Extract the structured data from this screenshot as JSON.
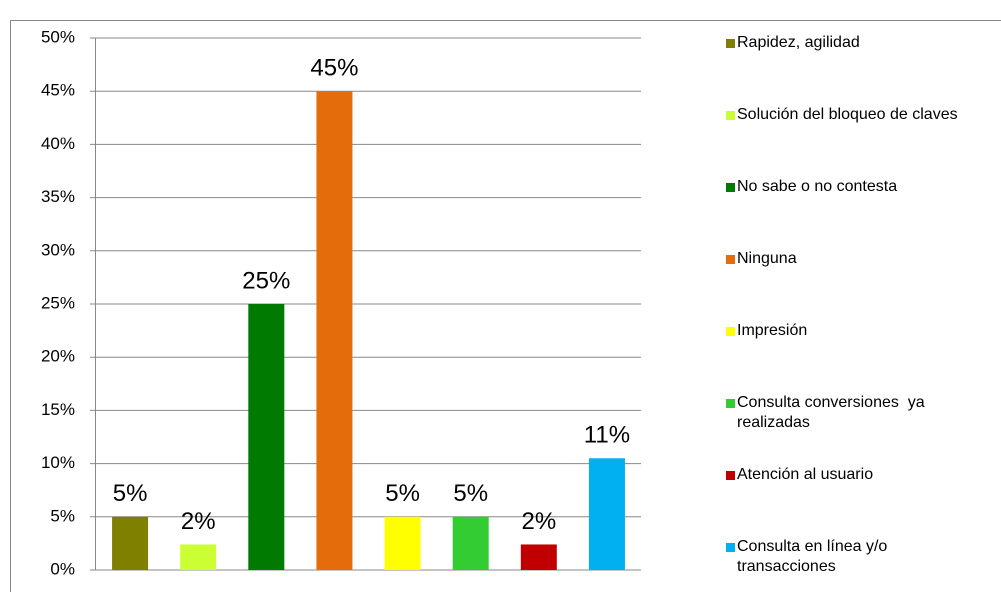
{
  "chart_data": {
    "type": "bar",
    "categories": [
      "Rapidez, agilidad",
      "Solución del bloqueo de claves",
      "No sabe o no contesta",
      "Ninguna",
      "Impresión",
      "Consulta conversiones  ya realizadas",
      "Atención al usuario",
      "Consulta en línea y/o transacciones"
    ],
    "colors": [
      "#808000",
      "#ccff33",
      "#007a00",
      "#e46c0a",
      "#ffff00",
      "#33cc33",
      "#c00000",
      "#00b0f0"
    ],
    "values": [
      5,
      2.4,
      25,
      45,
      5,
      5,
      2.4,
      10.5
    ],
    "value_labels": [
      "5%",
      "2%",
      "25%",
      "45%",
      "5%",
      "5%",
      "2%",
      "11%"
    ],
    "ylim": [
      0,
      50
    ],
    "yticks": [
      {
        "value": 0,
        "label": "0%"
      },
      {
        "value": 5,
        "label": "5%"
      },
      {
        "value": 10,
        "label": "10%"
      },
      {
        "value": 15,
        "label": "15%"
      },
      {
        "value": 20,
        "label": "20%"
      },
      {
        "value": 25,
        "label": "25%"
      },
      {
        "value": 30,
        "label": "30%"
      },
      {
        "value": 35,
        "label": "35%"
      },
      {
        "value": 40,
        "label": "40%"
      },
      {
        "value": 45,
        "label": "45%"
      },
      {
        "value": 50,
        "label": "50%"
      }
    ],
    "grid": true,
    "legend": "right"
  }
}
